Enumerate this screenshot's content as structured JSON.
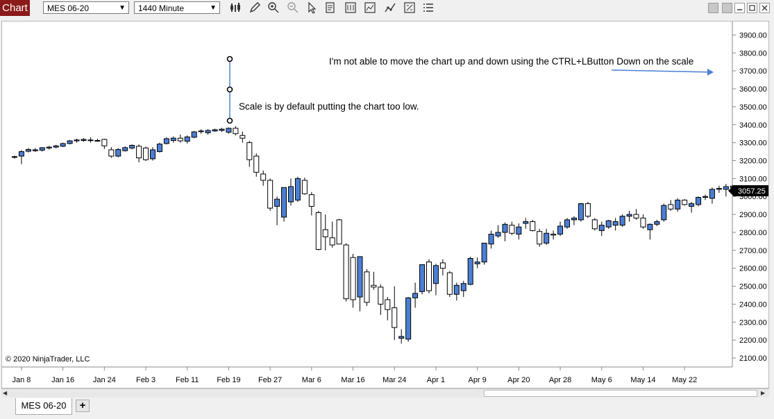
{
  "window": {
    "title": "Chart"
  },
  "toolbar": {
    "instrument": "MES 06-20",
    "interval": "1440 Minute",
    "icons": [
      "bar-type-icon",
      "pencil-icon",
      "zoom-in-icon",
      "zoom-out-icon",
      "pointer-icon",
      "data-box-icon",
      "properties-icon",
      "indicators-icon",
      "strategies-icon",
      "templates-icon",
      "list-icon"
    ]
  },
  "chart": {
    "copyright": "© 2020 NinjaTrader, LLC",
    "price_marker": "3057.25",
    "annotation_scale": "Scale is by default putting the chart too low.",
    "annotation_ctrl": "I'm not able to move the chart up and down using the CTRL+LButton Down on the scale"
  },
  "tabs": {
    "active": "MES 06-20",
    "add_label": "+"
  },
  "chart_data": {
    "type": "candlestick",
    "instrument": "MES 06-20",
    "interval": "1440 Minute",
    "y_ticks": [
      "3900.00",
      "3800.00",
      "3700.00",
      "3600.00",
      "3500.00",
      "3400.00",
      "3300.00",
      "3200.00",
      "3100.00",
      "3000.00",
      "2900.00",
      "2800.00",
      "2700.00",
      "2600.00",
      "2500.00",
      "2400.00",
      "2300.00",
      "2200.00",
      "2100.00"
    ],
    "ylim": [
      2050,
      3975
    ],
    "x_ticks": [
      "Jan 8",
      "Jan 16",
      "Jan 24",
      "Feb 3",
      "Feb 11",
      "Feb 19",
      "Feb 27",
      "Mar 6",
      "Mar 16",
      "Mar 24",
      "Apr 1",
      "Apr 9",
      "Apr 20",
      "Apr 28",
      "May 6",
      "May 14",
      "May 22"
    ],
    "x_tick_bar_index": [
      1,
      7,
      13,
      19,
      25,
      31,
      37,
      43,
      49,
      55,
      61,
      67,
      73,
      79,
      85,
      91,
      97
    ],
    "colors": {
      "up": "#4a7fd4",
      "down": "#ffffff",
      "outline": "#000000"
    },
    "ohlc": [
      [
        3220,
        3228,
        3210,
        3222
      ],
      [
        3225,
        3258,
        3180,
        3250
      ],
      [
        3252,
        3270,
        3245,
        3262
      ],
      [
        3255,
        3270,
        3248,
        3260
      ],
      [
        3258,
        3275,
        3250,
        3272
      ],
      [
        3270,
        3282,
        3262,
        3275
      ],
      [
        3275,
        3288,
        3268,
        3282
      ],
      [
        3280,
        3300,
        3275,
        3295
      ],
      [
        3295,
        3315,
        3290,
        3310
      ],
      [
        3310,
        3322,
        3300,
        3315
      ],
      [
        3312,
        3325,
        3305,
        3318
      ],
      [
        3315,
        3330,
        3300,
        3315
      ],
      [
        3312,
        3322,
        3305,
        3310
      ],
      [
        3318,
        3322,
        3265,
        3282
      ],
      [
        3260,
        3275,
        3215,
        3225
      ],
      [
        3225,
        3270,
        3218,
        3262
      ],
      [
        3255,
        3280,
        3250,
        3272
      ],
      [
        3270,
        3290,
        3262,
        3285
      ],
      [
        3280,
        3290,
        3190,
        3215
      ],
      [
        3270,
        3278,
        3198,
        3205
      ],
      [
        3210,
        3275,
        3200,
        3260
      ],
      [
        3250,
        3300,
        3245,
        3292
      ],
      [
        3295,
        3330,
        3290,
        3322
      ],
      [
        3312,
        3335,
        3300,
        3325
      ],
      [
        3325,
        3345,
        3300,
        3310
      ],
      [
        3308,
        3340,
        3295,
        3332
      ],
      [
        3330,
        3365,
        3325,
        3360
      ],
      [
        3362,
        3375,
        3350,
        3365
      ],
      [
        3355,
        3375,
        3345,
        3368
      ],
      [
        3365,
        3378,
        3360,
        3372
      ],
      [
        3368,
        3382,
        3360,
        3375
      ],
      [
        3358,
        3385,
        3350,
        3380
      ],
      [
        3380,
        3392,
        3340,
        3350
      ],
      [
        3340,
        3362,
        3300,
        3325
      ],
      [
        3300,
        3310,
        3165,
        3205
      ],
      [
        3225,
        3240,
        3110,
        3135
      ],
      [
        3125,
        3145,
        3060,
        3090
      ],
      [
        3090,
        3100,
        2920,
        2935
      ],
      [
        2945,
        3000,
        2840,
        2985
      ],
      [
        2885,
        3050,
        2860,
        3050
      ],
      [
        2970,
        3100,
        2950,
        3055
      ],
      [
        2980,
        3110,
        2970,
        3100
      ],
      [
        3090,
        3105,
        3010,
        3015
      ],
      [
        3010,
        3025,
        2895,
        2945
      ],
      [
        2910,
        2920,
        2700,
        2705
      ],
      [
        2815,
        2900,
        2700,
        2775
      ],
      [
        2770,
        2860,
        2715,
        2730
      ],
      [
        2870,
        2875,
        2735,
        2735
      ],
      [
        2730,
        2740,
        2415,
        2430
      ],
      [
        2660,
        2680,
        2380,
        2425
      ],
      [
        2440,
        2660,
        2360,
        2665
      ],
      [
        2580,
        2595,
        2390,
        2410
      ],
      [
        2505,
        2580,
        2480,
        2495
      ],
      [
        2495,
        2510,
        2340,
        2400
      ],
      [
        2425,
        2440,
        2310,
        2370
      ],
      [
        2380,
        2500,
        2200,
        2270
      ],
      [
        2210,
        2260,
        2180,
        2220
      ],
      [
        2205,
        2440,
        2190,
        2435
      ],
      [
        2435,
        2520,
        2380,
        2460
      ],
      [
        2470,
        2620,
        2455,
        2620
      ],
      [
        2635,
        2650,
        2460,
        2475
      ],
      [
        2515,
        2625,
        2450,
        2615
      ],
      [
        2630,
        2650,
        2560,
        2600
      ],
      [
        2575,
        2585,
        2440,
        2455
      ],
      [
        2455,
        2520,
        2420,
        2505
      ],
      [
        2475,
        2530,
        2440,
        2515
      ],
      [
        2510,
        2665,
        2505,
        2655
      ],
      [
        2625,
        2660,
        2600,
        2635
      ],
      [
        2635,
        2740,
        2620,
        2740
      ],
      [
        2735,
        2810,
        2710,
        2790
      ],
      [
        2780,
        2840,
        2770,
        2800
      ],
      [
        2800,
        2855,
        2750,
        2845
      ],
      [
        2840,
        2860,
        2785,
        2795
      ],
      [
        2790,
        2850,
        2760,
        2830
      ],
      [
        2850,
        2880,
        2820,
        2860
      ],
      [
        2860,
        2870,
        2805,
        2810
      ],
      [
        2805,
        2820,
        2720,
        2735
      ],
      [
        2740,
        2820,
        2730,
        2795
      ],
      [
        2790,
        2810,
        2760,
        2785
      ],
      [
        2790,
        2860,
        2780,
        2835
      ],
      [
        2830,
        2880,
        2820,
        2870
      ],
      [
        2870,
        2890,
        2840,
        2880
      ],
      [
        2870,
        2965,
        2860,
        2960
      ],
      [
        2960,
        2970,
        2880,
        2890
      ],
      [
        2870,
        2880,
        2810,
        2820
      ],
      [
        2810,
        2860,
        2780,
        2840
      ],
      [
        2830,
        2870,
        2820,
        2865
      ],
      [
        2840,
        2880,
        2810,
        2860
      ],
      [
        2840,
        2900,
        2830,
        2890
      ],
      [
        2890,
        2920,
        2860,
        2900
      ],
      [
        2900,
        2930,
        2870,
        2880
      ],
      [
        2880,
        2900,
        2820,
        2830
      ],
      [
        2815,
        2850,
        2760,
        2845
      ],
      [
        2845,
        2870,
        2835,
        2860
      ],
      [
        2870,
        2960,
        2860,
        2950
      ],
      [
        2955,
        2980,
        2920,
        2930
      ],
      [
        2930,
        2990,
        2915,
        2980
      ],
      [
        2980,
        2985,
        2950,
        2955
      ],
      [
        2945,
        2970,
        2910,
        2960
      ],
      [
        2955,
        3000,
        2945,
        2995
      ],
      [
        2995,
        3010,
        2980,
        3000
      ],
      [
        2990,
        3050,
        2960,
        3040
      ],
      [
        3040,
        3060,
        3020,
        3045
      ],
      [
        3040,
        3070,
        3000,
        3055
      ],
      [
        3050,
        3065,
        3030,
        3058
      ]
    ]
  }
}
